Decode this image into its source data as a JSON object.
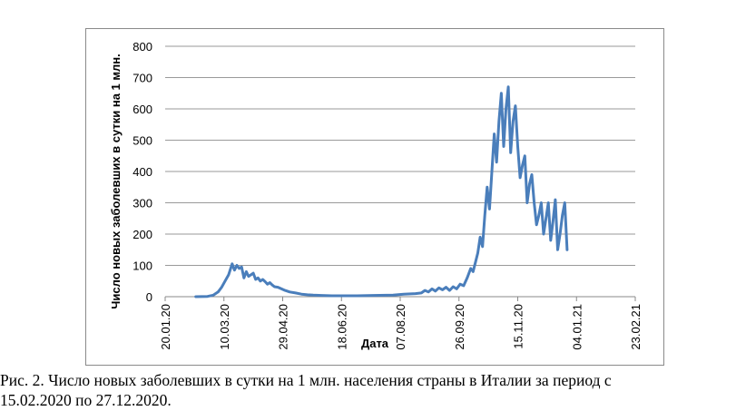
{
  "chart_data": {
    "type": "line",
    "title": "",
    "xlabel": "Дата",
    "ylabel": "Число новых заболевших в сутки на 1 млн.",
    "ylim": [
      0,
      800
    ],
    "yticks": [
      "0",
      "100",
      "200",
      "300",
      "400",
      "500",
      "600",
      "700",
      "800"
    ],
    "xticks": [
      "20.01.20",
      "10.03.20",
      "29.04.20",
      "18.06.20",
      "07.08.20",
      "26.09.20",
      "15.11.20",
      "04.01.21",
      "23.02.21"
    ],
    "grid": "horizontal",
    "line_color": "#4a7ebb",
    "series": [
      {
        "x": [
          "15.02.2020",
          "25.02.2020",
          "01.03.2020",
          "05.03.2020",
          "08.03.2020",
          "11.03.2020",
          "14.03.2020",
          "17.03.2020",
          "19.03.2020",
          "21.03.2020",
          "23.03.2020",
          "25.03.2020",
          "27.03.2020",
          "29.03.2020",
          "31.03.2020",
          "02.04.2020",
          "04.04.2020",
          "06.04.2020",
          "08.04.2020",
          "10.04.2020",
          "12.04.2020",
          "14.04.2020",
          "16.04.2020",
          "18.04.2020",
          "20.04.2020",
          "22.04.2020",
          "25.04.2020",
          "28.04.2020",
          "01.05.2020",
          "05.05.2020",
          "10.05.2020",
          "15.05.2020",
          "20.05.2020",
          "25.05.2020",
          "01.06.2020",
          "10.06.2020",
          "20.06.2020",
          "01.07.2020",
          "15.07.2020",
          "01.08.2020",
          "10.08.2020",
          "20.08.2020",
          "25.08.2020",
          "28.08.2020",
          "31.08.2020",
          "03.09.2020",
          "06.09.2020",
          "09.09.2020",
          "12.09.2020",
          "15.09.2020",
          "18.09.2020",
          "21.09.2020",
          "24.09.2020",
          "27.09.2020",
          "30.09.2020",
          "03.10.2020",
          "06.10.2020",
          "08.10.2020",
          "10.10.2020",
          "12.10.2020",
          "14.10.2020",
          "16.10.2020",
          "18.10.2020",
          "20.10.2020",
          "22.10.2020",
          "24.10.2020",
          "26.10.2020",
          "28.10.2020",
          "30.10.2020",
          "01.11.2020",
          "03.11.2020",
          "05.11.2020",
          "07.11.2020",
          "09.11.2020",
          "11.11.2020",
          "13.11.2020",
          "15.11.2020",
          "17.11.2020",
          "19.11.2020",
          "21.11.2020",
          "23.11.2020",
          "25.11.2020",
          "27.11.2020",
          "29.11.2020",
          "01.12.2020",
          "03.12.2020",
          "05.12.2020",
          "07.12.2020",
          "09.12.2020",
          "11.12.2020",
          "13.12.2020",
          "15.12.2020",
          "17.12.2020",
          "19.12.2020",
          "21.12.2020",
          "23.12.2020",
          "25.12.2020",
          "27.12.2020"
        ],
        "y": [
          0,
          1,
          5,
          15,
          30,
          50,
          70,
          105,
          85,
          100,
          90,
          95,
          60,
          80,
          65,
          70,
          75,
          55,
          60,
          50,
          55,
          48,
          40,
          45,
          38,
          32,
          30,
          25,
          20,
          15,
          12,
          8,
          6,
          5,
          4,
          3,
          3,
          3,
          4,
          5,
          8,
          10,
          12,
          20,
          15,
          25,
          18,
          28,
          22,
          30,
          20,
          32,
          25,
          40,
          35,
          60,
          90,
          80,
          110,
          140,
          190,
          160,
          260,
          350,
          280,
          400,
          520,
          430,
          560,
          650,
          480,
          600,
          670,
          460,
          560,
          610,
          480,
          380,
          420,
          450,
          300,
          360,
          390,
          300,
          230,
          260,
          300,
          200,
          250,
          300,
          180,
          240,
          310,
          150,
          200,
          260,
          300,
          150
        ]
      }
    ]
  },
  "caption": {
    "line1": "Рис. 2. Число новых заболевших в сутки на 1 млн. населения страны в Италии за период с",
    "line2": "15.02.2020 по 27.12.2020."
  }
}
